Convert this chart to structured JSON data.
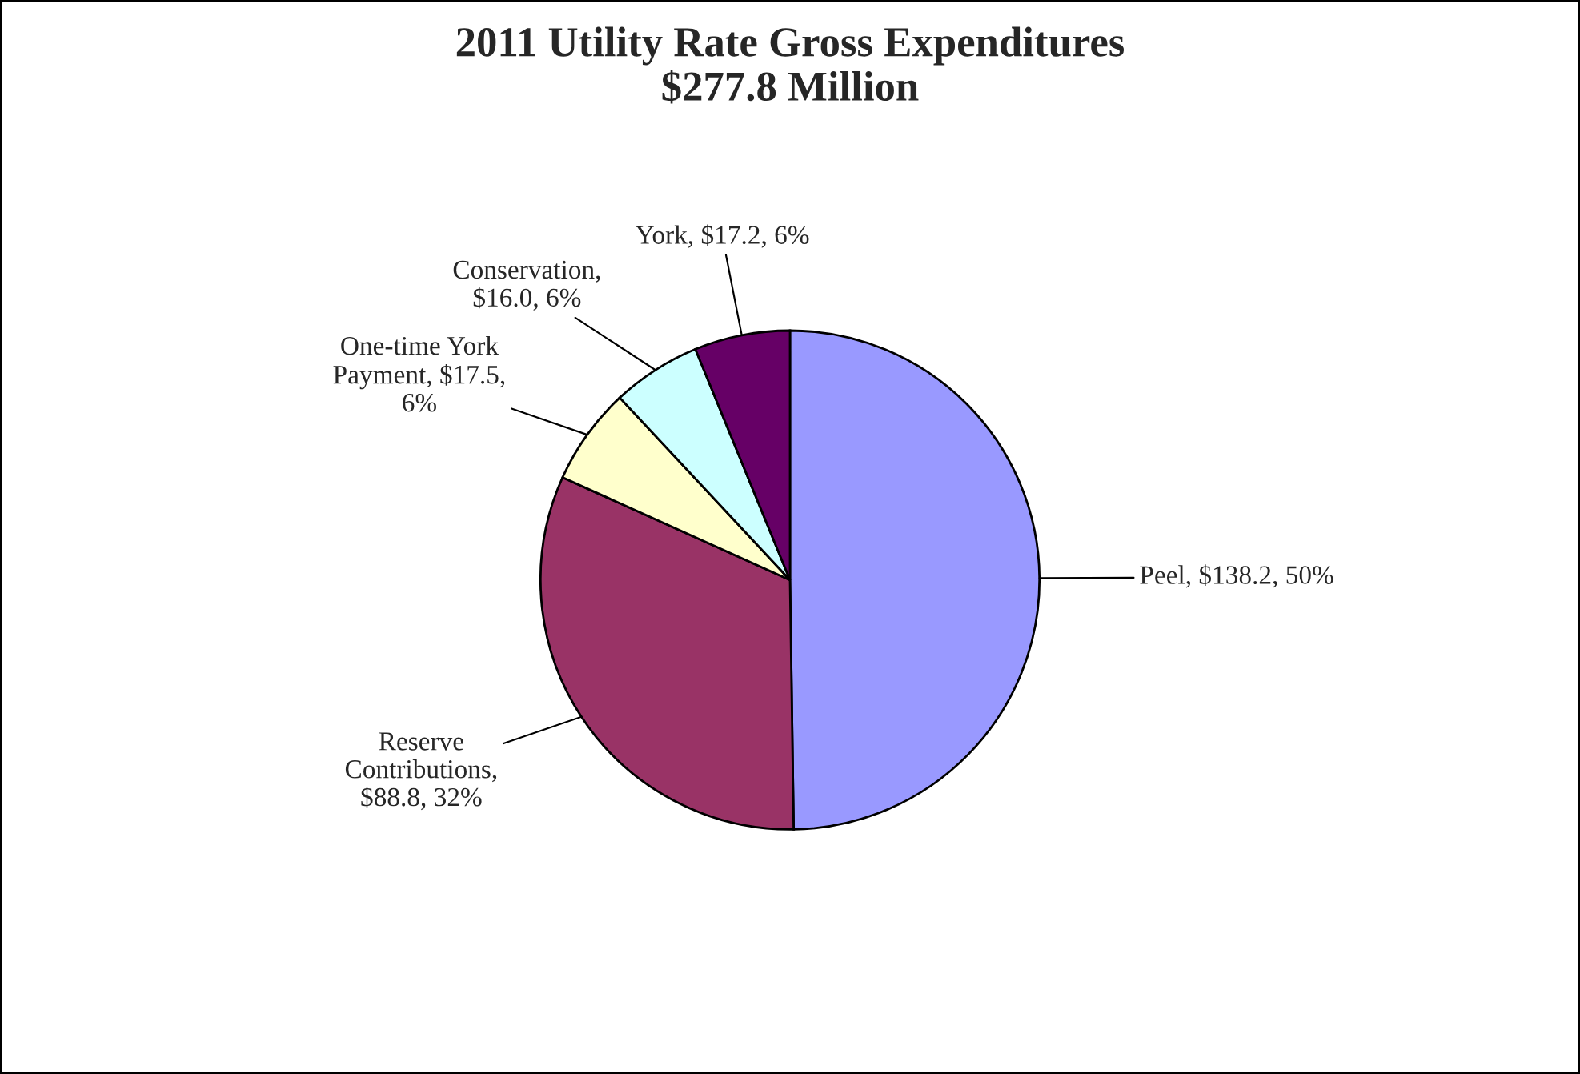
{
  "chart_data": {
    "type": "pie",
    "title": "2011 Utility Rate Gross Expenditures\n$277.8 Million",
    "categories": [
      "Peel, $138.2, 50%",
      "Reserve\nContributions,\n$88.8, 32%",
      "One-time York\nPayment, $17.5,\n6%",
      "Conservation,\n$16.0, 6%",
      "York, $17.2, 6%"
    ],
    "values": [
      138.2,
      88.8,
      17.5,
      16.0,
      17.2
    ],
    "colors": [
      "#9999ff",
      "#993366",
      "#ffffcc",
      "#ccffff",
      "#660066"
    ],
    "legend": false
  }
}
